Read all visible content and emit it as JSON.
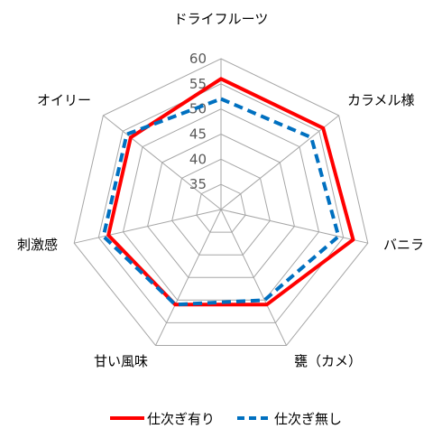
{
  "chart_data": {
    "type": "radar",
    "title": "",
    "categories": [
      "ドライフルーツ",
      "カラメル様",
      "バニラ",
      "甕（カメ）",
      "甘い風味",
      "刺激感",
      "オイリー"
    ],
    "rticks": [
      "35",
      "40",
      "45",
      "50",
      "55",
      "60"
    ],
    "rlim": [
      30,
      60
    ],
    "grid": true,
    "legend_position": "bottom",
    "series": [
      {
        "name": "仕次ぎ有り",
        "values": [
          56,
          56,
          57,
          51,
          51,
          53,
          53
        ],
        "color": "#ff0000",
        "style": "solid"
      },
      {
        "name": "仕次ぎ無し",
        "values": [
          52,
          53,
          54,
          50,
          51,
          54,
          54
        ],
        "color": "#0070c0",
        "style": "dashed"
      }
    ]
  }
}
